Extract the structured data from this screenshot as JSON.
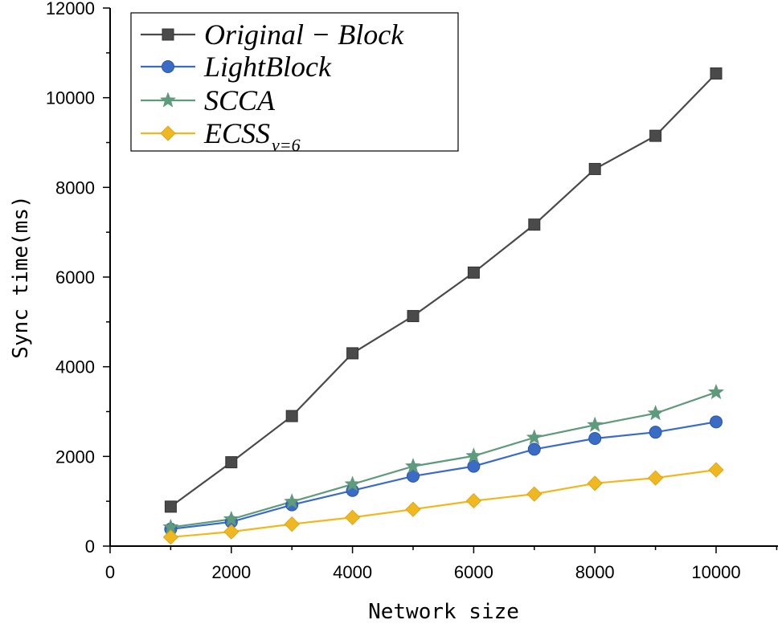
{
  "chart_data": {
    "type": "line",
    "title": "",
    "xlabel": "Network size",
    "ylabel": "Sync time(ms)",
    "xlim": [
      0,
      11000
    ],
    "ylim": [
      0,
      12000
    ],
    "xticks": [
      0,
      2000,
      4000,
      6000,
      8000,
      10000
    ],
    "yticks": [
      0,
      2000,
      4000,
      6000,
      8000,
      10000,
      12000
    ],
    "xtick_labels": [
      "0",
      "2000",
      "4000",
      "6000",
      "8000",
      "10000"
    ],
    "ytick_labels": [
      "0",
      "2000",
      "4000",
      "6000",
      "8000",
      "10000",
      "12000"
    ],
    "legend_position": "top-left",
    "grid": false,
    "x": [
      1000,
      2000,
      3000,
      4000,
      5000,
      6000,
      7000,
      8000,
      9000,
      10000
    ],
    "series": [
      {
        "name": "Original − Block",
        "name_main": "Original − Block",
        "name_sub": "",
        "marker": "square",
        "color": "#4a4a4a",
        "values": [
          880,
          1870,
          2900,
          4300,
          5130,
          6100,
          7170,
          8410,
          9150,
          10540
        ]
      },
      {
        "name": "LightBlock",
        "name_main": "LightBlock",
        "name_sub": "",
        "marker": "circle",
        "color": "#3a6cc6",
        "values": [
          380,
          540,
          920,
          1240,
          1560,
          1780,
          2160,
          2400,
          2540,
          2770
        ]
      },
      {
        "name": "SCCA",
        "name_main": "SCCA",
        "name_sub": "",
        "marker": "star",
        "color": "#5e9a7c",
        "values": [
          420,
          600,
          990,
          1380,
          1780,
          2010,
          2420,
          2700,
          2960,
          3430
        ]
      },
      {
        "name": "ECSS v=6",
        "name_main": "ECSS",
        "name_sub": "v=6",
        "marker": "diamond",
        "color": "#f0b820",
        "values": [
          200,
          320,
          490,
          640,
          820,
          1010,
          1160,
          1400,
          1520,
          1700
        ]
      }
    ]
  }
}
